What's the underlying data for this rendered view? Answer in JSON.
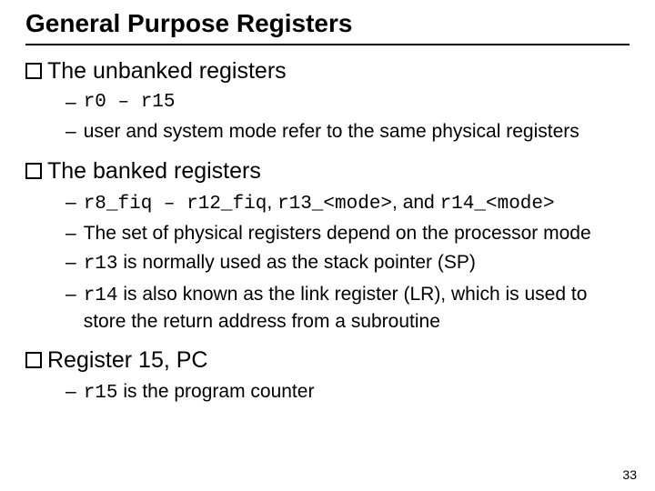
{
  "title": "General Purpose Registers",
  "section1": {
    "heading": "The unbanked registers",
    "items": {
      "i1_mono": "r0 – r15",
      "i2": "user and system mode refer to the same physical registers"
    }
  },
  "section2": {
    "heading": "The banked registers",
    "items": {
      "i1": {
        "m1": "r8_fiq – r12_fiq",
        "t1": ", ",
        "m2": "r13_<mode>",
        "t2": ", and ",
        "m3": "r14_<mode>"
      },
      "i2": "The set of physical registers depend on the processor mode",
      "i3": {
        "m1": "r13",
        "t1": " is normally used as the stack pointer (SP)"
      },
      "i4": {
        "m1": "r14",
        "t1": " is also known as the link register (LR), which is used to store the return address from a subroutine"
      }
    }
  },
  "section3": {
    "heading": "Register 15, PC",
    "items": {
      "i1": {
        "m1": "r15",
        "t1": " is the program counter"
      }
    }
  },
  "page_number": "33",
  "colors": {
    "text": "#000000",
    "bg": "#ffffff"
  },
  "fonts": {
    "title_pt": 28,
    "section_pt": 25,
    "sub_pt": 21,
    "pagenum_pt": 14
  }
}
